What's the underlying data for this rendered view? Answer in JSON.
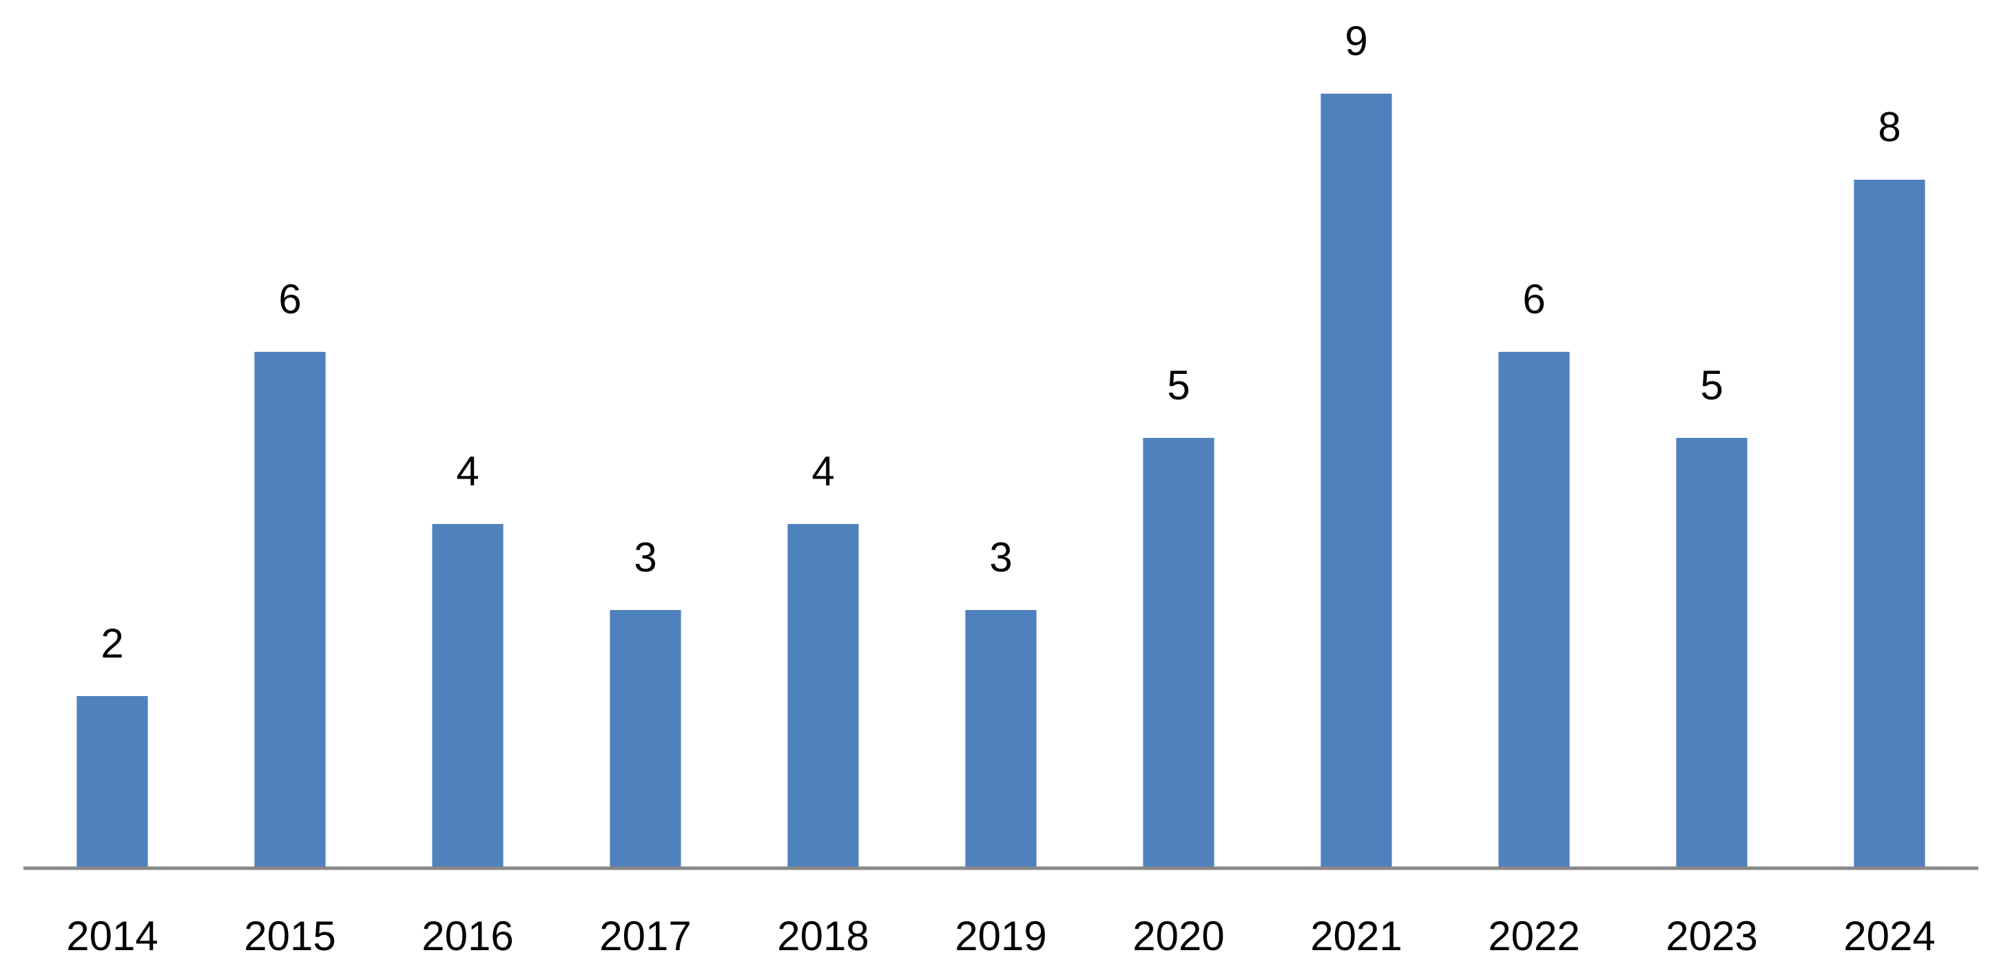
{
  "chart_data": {
    "type": "bar",
    "categories": [
      "2014",
      "2015",
      "2016",
      "2017",
      "2018",
      "2019",
      "2020",
      "2021",
      "2022",
      "2023",
      "2024"
    ],
    "values": [
      2,
      6,
      4,
      3,
      4,
      3,
      5,
      9,
      6,
      5,
      8
    ],
    "color": "#4f81bd",
    "ylim": [
      0,
      9
    ],
    "grid": false
  }
}
